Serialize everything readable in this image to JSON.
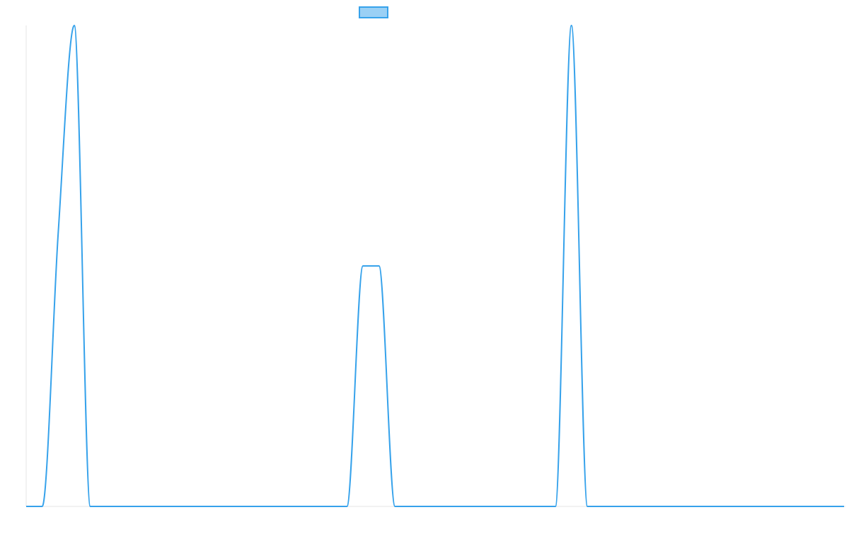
{
  "chart_data": {
    "type": "line",
    "categories": [
      null,
      null,
      null,
      null,
      null,
      null,
      null,
      null,
      null,
      null,
      null,
      null,
      null,
      null,
      null,
      null,
      null,
      null,
      null,
      null,
      null,
      null,
      null,
      null,
      null,
      null,
      null,
      null,
      null,
      null,
      null,
      null,
      null,
      null,
      null,
      null,
      null,
      null,
      null,
      null,
      null,
      null,
      null,
      null,
      null,
      null,
      null,
      null,
      null,
      null,
      null,
      null
    ],
    "series": [
      {
        "color": "#36a2eb",
        "values": [
          0,
          0,
          57,
          100,
          0,
          0,
          0,
          0,
          0,
          0,
          0,
          0,
          0,
          0,
          0,
          0,
          0,
          0,
          0,
          0,
          0,
          50,
          50,
          0,
          0,
          0,
          0,
          0,
          0,
          0,
          0,
          0,
          0,
          0,
          100,
          0,
          0,
          0,
          0,
          0,
          0,
          0,
          0,
          0,
          0,
          0,
          0,
          0,
          0,
          0,
          0,
          0
        ]
      }
    ],
    "ylim": [
      0,
      100
    ],
    "legend": "top"
  }
}
